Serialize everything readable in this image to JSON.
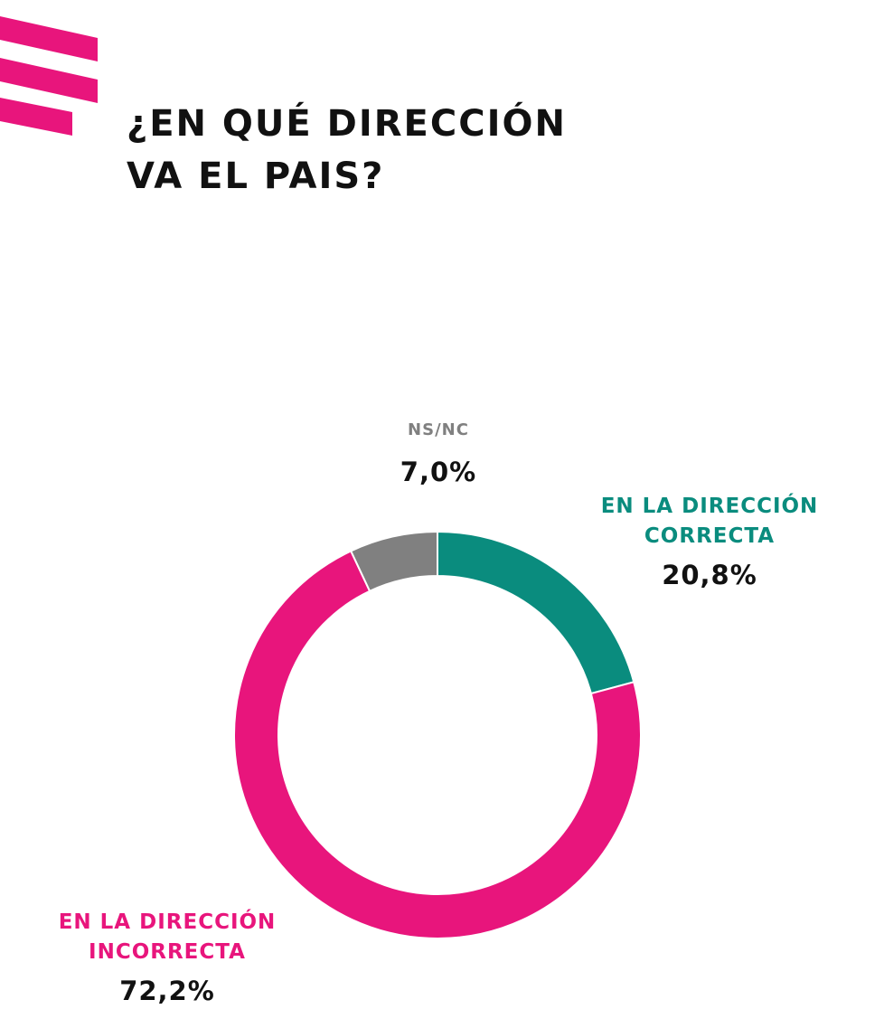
{
  "page": {
    "title_line1": "¿EN QUÉ DIRECCIÓN",
    "title_line2": "VA EL PAIS?"
  },
  "colors": {
    "brand_magenta": "#E8157C",
    "correcta": "#0A8C7E",
    "nsnc": "#808080",
    "text": "#111111"
  },
  "chart_data": {
    "type": "pie",
    "variant": "donut",
    "start": "top",
    "direction": "clockwise",
    "slices": [
      {
        "label_line1": "EN LA DIRECCIÓN",
        "label_line2": "CORRECTA",
        "value": 20.8,
        "value_label": "20,8%",
        "color": "#0A8C7E"
      },
      {
        "label_line1": "EN LA DIRECCIÓN",
        "label_line2": "INCORRECTA",
        "value": 72.2,
        "value_label": "72,2%",
        "color": "#E8157C"
      },
      {
        "label_line1": "NS/NC",
        "label_line2": "",
        "value": 7.0,
        "value_label": "7,0%",
        "color": "#808080"
      }
    ]
  }
}
